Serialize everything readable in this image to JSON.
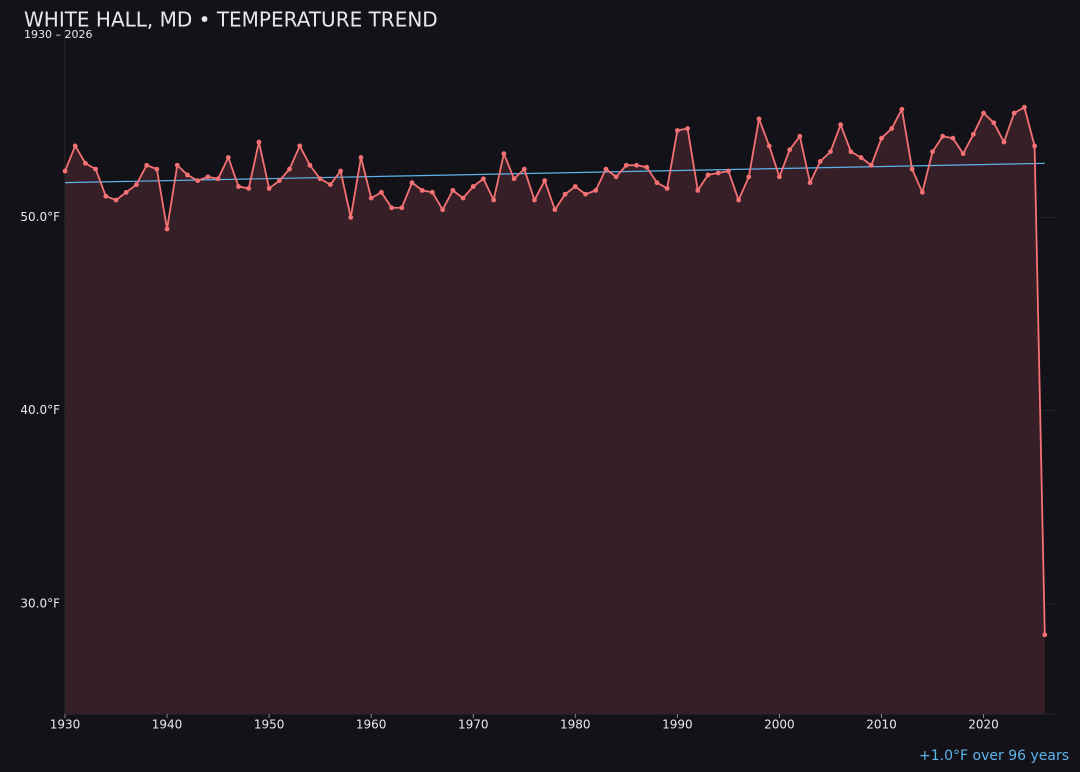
{
  "chart_data": {
    "type": "line",
    "title": "WHITE HALL, MD • TEMPERATURE TREND",
    "subtitle": "1930 – 2026",
    "annotation": "+1.0°F over 96 years",
    "x": [
      1930,
      1931,
      1932,
      1933,
      1934,
      1935,
      1936,
      1937,
      1938,
      1939,
      1940,
      1941,
      1942,
      1943,
      1944,
      1945,
      1946,
      1947,
      1948,
      1949,
      1950,
      1951,
      1952,
      1953,
      1954,
      1955,
      1956,
      1957,
      1958,
      1959,
      1960,
      1961,
      1962,
      1963,
      1964,
      1965,
      1966,
      1967,
      1968,
      1969,
      1970,
      1971,
      1972,
      1973,
      1974,
      1975,
      1976,
      1977,
      1978,
      1979,
      1980,
      1981,
      1982,
      1983,
      1984,
      1985,
      1986,
      1987,
      1988,
      1989,
      1990,
      1991,
      1992,
      1993,
      1994,
      1995,
      1996,
      1997,
      1998,
      1999,
      2000,
      2001,
      2002,
      2003,
      2004,
      2005,
      2006,
      2007,
      2008,
      2009,
      2010,
      2011,
      2012,
      2013,
      2014,
      2015,
      2016,
      2017,
      2018,
      2019,
      2020,
      2021,
      2022,
      2023,
      2024,
      2025,
      2026
    ],
    "series": [
      {
        "color": "#f47174",
        "values": [
          52.4,
          53.7,
          52.8,
          52.5,
          51.1,
          50.9,
          51.3,
          51.7,
          52.7,
          52.5,
          49.4,
          52.7,
          52.2,
          51.9,
          52.1,
          52.0,
          53.1,
          51.6,
          51.5,
          53.9,
          51.5,
          51.9,
          52.5,
          53.7,
          52.7,
          52.0,
          51.7,
          52.4,
          50.0,
          53.1,
          51.0,
          51.3,
          50.5,
          50.5,
          51.8,
          51.4,
          51.3,
          50.4,
          51.4,
          51.0,
          51.6,
          52.0,
          50.9,
          53.3,
          52.0,
          52.5,
          50.9,
          51.9,
          50.4,
          51.2,
          51.6,
          51.2,
          51.4,
          52.5,
          52.1,
          52.7,
          52.7,
          52.6,
          51.8,
          51.5,
          54.5,
          54.6,
          51.4,
          52.2,
          52.3,
          52.4,
          50.9,
          52.1,
          55.1,
          53.7,
          52.1,
          53.5,
          54.2,
          51.8,
          52.9,
          53.4,
          54.8,
          53.4,
          53.1,
          52.7,
          54.1,
          54.6,
          55.6,
          52.5,
          51.3,
          53.4,
          54.2,
          54.1,
          53.3,
          54.3,
          55.4,
          54.9,
          53.9,
          55.4,
          55.7,
          53.7,
          28.4
        ]
      }
    ],
    "trend": {
      "color": "#5fb4ec",
      "x": [
        1930,
        2026
      ],
      "values": [
        51.8,
        52.8
      ]
    },
    "area_color": "#361f26",
    "xlim": [
      1930,
      2027
    ],
    "xticks": [
      1930,
      1940,
      1950,
      1960,
      1970,
      1980,
      1990,
      2000,
      2010,
      2020
    ],
    "ylim": [
      24.3,
      59.7
    ],
    "yticks": [
      {
        "value": 30,
        "label": "30.0°F"
      },
      {
        "value": 40,
        "label": "40.0°F"
      },
      {
        "value": 50,
        "label": "50.0°F"
      }
    ],
    "grid": true
  }
}
